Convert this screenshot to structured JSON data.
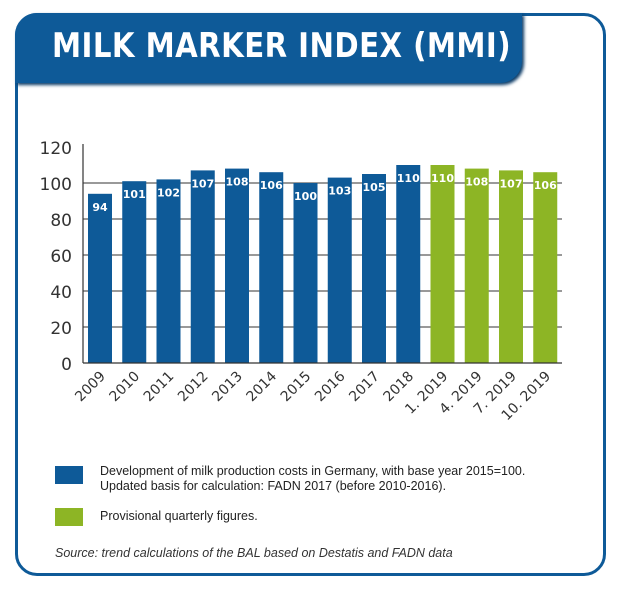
{
  "header": {
    "title": "MILK MARKER INDEX (MMI)"
  },
  "colors": {
    "blue": "#0e5a98",
    "green": "#8db525",
    "frame": "#0e5a98"
  },
  "chart_data": {
    "type": "bar",
    "title": "MILK MARKER INDEX (MMI)",
    "categories": [
      "2009",
      "2010",
      "2011",
      "2012",
      "2013",
      "2014",
      "2015",
      "2016",
      "2017",
      "2018",
      "1. 2019",
      "4. 2019",
      "7. 2019",
      "10. 2019"
    ],
    "values": [
      94,
      101,
      102,
      107,
      108,
      106,
      100,
      103,
      105,
      110,
      110,
      108,
      107,
      106
    ],
    "series_type": [
      "costs",
      "costs",
      "costs",
      "costs",
      "costs",
      "costs",
      "costs",
      "costs",
      "costs",
      "costs",
      "provisional",
      "provisional",
      "provisional",
      "provisional"
    ],
    "yticks": [
      0,
      20,
      40,
      60,
      80,
      100,
      120
    ],
    "ylim": [
      0,
      120
    ],
    "grid": true,
    "legend": [
      {
        "key": "costs",
        "label": "Development of milk production costs in Germany, with base year 2015=100.",
        "label2": "Updated basis for calculation: FADN 2017 (before 2010-2016)."
      },
      {
        "key": "provisional",
        "label": "Provisional quarterly figures."
      }
    ],
    "legend_placement": "bottom"
  },
  "source": "Source: trend calculations of the BAL based on Destatis and FADN data"
}
